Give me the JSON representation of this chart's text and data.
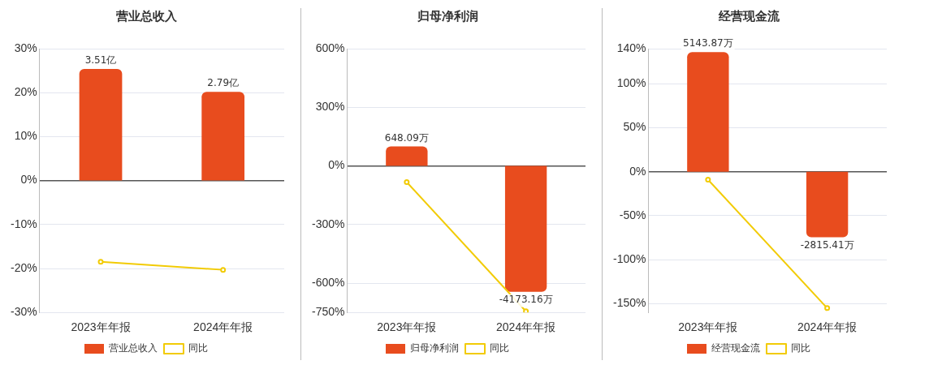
{
  "chart_data": [
    {
      "type": "bar",
      "title": "营业总收入",
      "categories": [
        "2023年年报",
        "2024年年报"
      ],
      "ylim": [
        -30,
        30
      ],
      "yticks": [
        {
          "value": -30,
          "label": "-30%"
        },
        {
          "value": -20,
          "label": "-20%"
        },
        {
          "value": -10,
          "label": "-10%"
        },
        {
          "value": 0,
          "label": "0%"
        },
        {
          "value": 10,
          "label": "10%"
        },
        {
          "value": 20,
          "label": "20%"
        },
        {
          "value": 30,
          "label": "30%"
        }
      ],
      "y2lim": [
        -4.15,
        4.15
      ],
      "grid": "y",
      "legend": "bottom",
      "series": [
        {
          "name": "营业总收入",
          "color": "#e84c1e",
          "axis": "y2",
          "values": [
            3.51,
            2.79
          ],
          "value_labels": [
            "3.51亿",
            "2.79亿"
          ]
        },
        {
          "name": "同比",
          "type": "line",
          "color": "#f2cb05",
          "marker": "circle",
          "values": [
            -18.5,
            -20.3
          ]
        }
      ]
    },
    {
      "type": "bar",
      "title": "归母净利润",
      "categories": [
        "2023年年报",
        "2024年年报"
      ],
      "ylim": [
        -750,
        600
      ],
      "yticks": [
        {
          "value": -750,
          "label": "-750%"
        },
        {
          "value": -600,
          "label": "-600%"
        },
        {
          "value": -300,
          "label": "-300%"
        },
        {
          "value": 0,
          "label": "0%"
        },
        {
          "value": 300,
          "label": "300%"
        },
        {
          "value": 600,
          "label": "600%"
        }
      ],
      "y2lim": [
        -4861,
        3889
      ],
      "grid": "y",
      "legend": "bottom",
      "series": [
        {
          "name": "归母净利润",
          "color": "#e84c1e",
          "axis": "y2",
          "values": [
            648.09,
            -4173.16
          ],
          "value_labels": [
            "648.09万",
            "-4173.16万"
          ]
        },
        {
          "name": "同比",
          "type": "line",
          "color": "#f2cb05",
          "marker": "circle",
          "values": [
            -83,
            -744
          ]
        }
      ]
    },
    {
      "type": "bar",
      "title": "经营现金流",
      "categories": [
        "2023年年报",
        "2024年年报"
      ],
      "ylim": [
        -160,
        140
      ],
      "yticks": [
        {
          "value": -150,
          "label": "-150%"
        },
        {
          "value": -100,
          "label": "-100%"
        },
        {
          "value": -50,
          "label": "-50%"
        },
        {
          "value": 0,
          "label": "0%"
        },
        {
          "value": 50,
          "label": "50%"
        },
        {
          "value": 100,
          "label": "100%"
        },
        {
          "value": 140,
          "label": "140%"
        }
      ],
      "y2lim": [
        -6051,
        5295
      ],
      "grid": "y",
      "legend": "bottom",
      "series": [
        {
          "name": "经营现金流",
          "color": "#e84c1e",
          "axis": "y2",
          "values": [
            5143.87,
            -2815.41
          ],
          "value_labels": [
            "5143.87万",
            "-2815.41万"
          ]
        },
        {
          "name": "同比",
          "type": "line",
          "color": "#f2cb05",
          "marker": "circle",
          "values": [
            -9,
            -155
          ]
        }
      ]
    }
  ]
}
